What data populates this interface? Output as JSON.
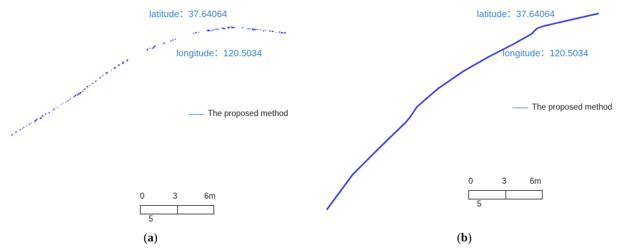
{
  "panels": [
    {
      "id": "a",
      "latitude_label": "latitude：37.64064",
      "longitude_label": "longitude：120.5034",
      "legend_label": "The proposed method",
      "scale": {
        "tick_0": "0",
        "tick_1": "3",
        "tick_2": "6m",
        "sub_label": "5"
      },
      "caption_open": "(",
      "caption_letter": "a",
      "caption_close": ")"
    },
    {
      "id": "b",
      "latitude_label": "latitude：37.64064",
      "longitude_label": "longitude：120.5034",
      "legend_label": "The proposed method",
      "scale": {
        "tick_0": "0",
        "tick_1": "3",
        "tick_2": "6m",
        "sub_label": "5"
      },
      "caption_open": "(",
      "caption_letter": "b",
      "caption_close": ")"
    }
  ],
  "colors": {
    "track": "#3b3fd6",
    "coord_text": "#3a7fd0",
    "legend_line": "#5b8fd6"
  }
}
